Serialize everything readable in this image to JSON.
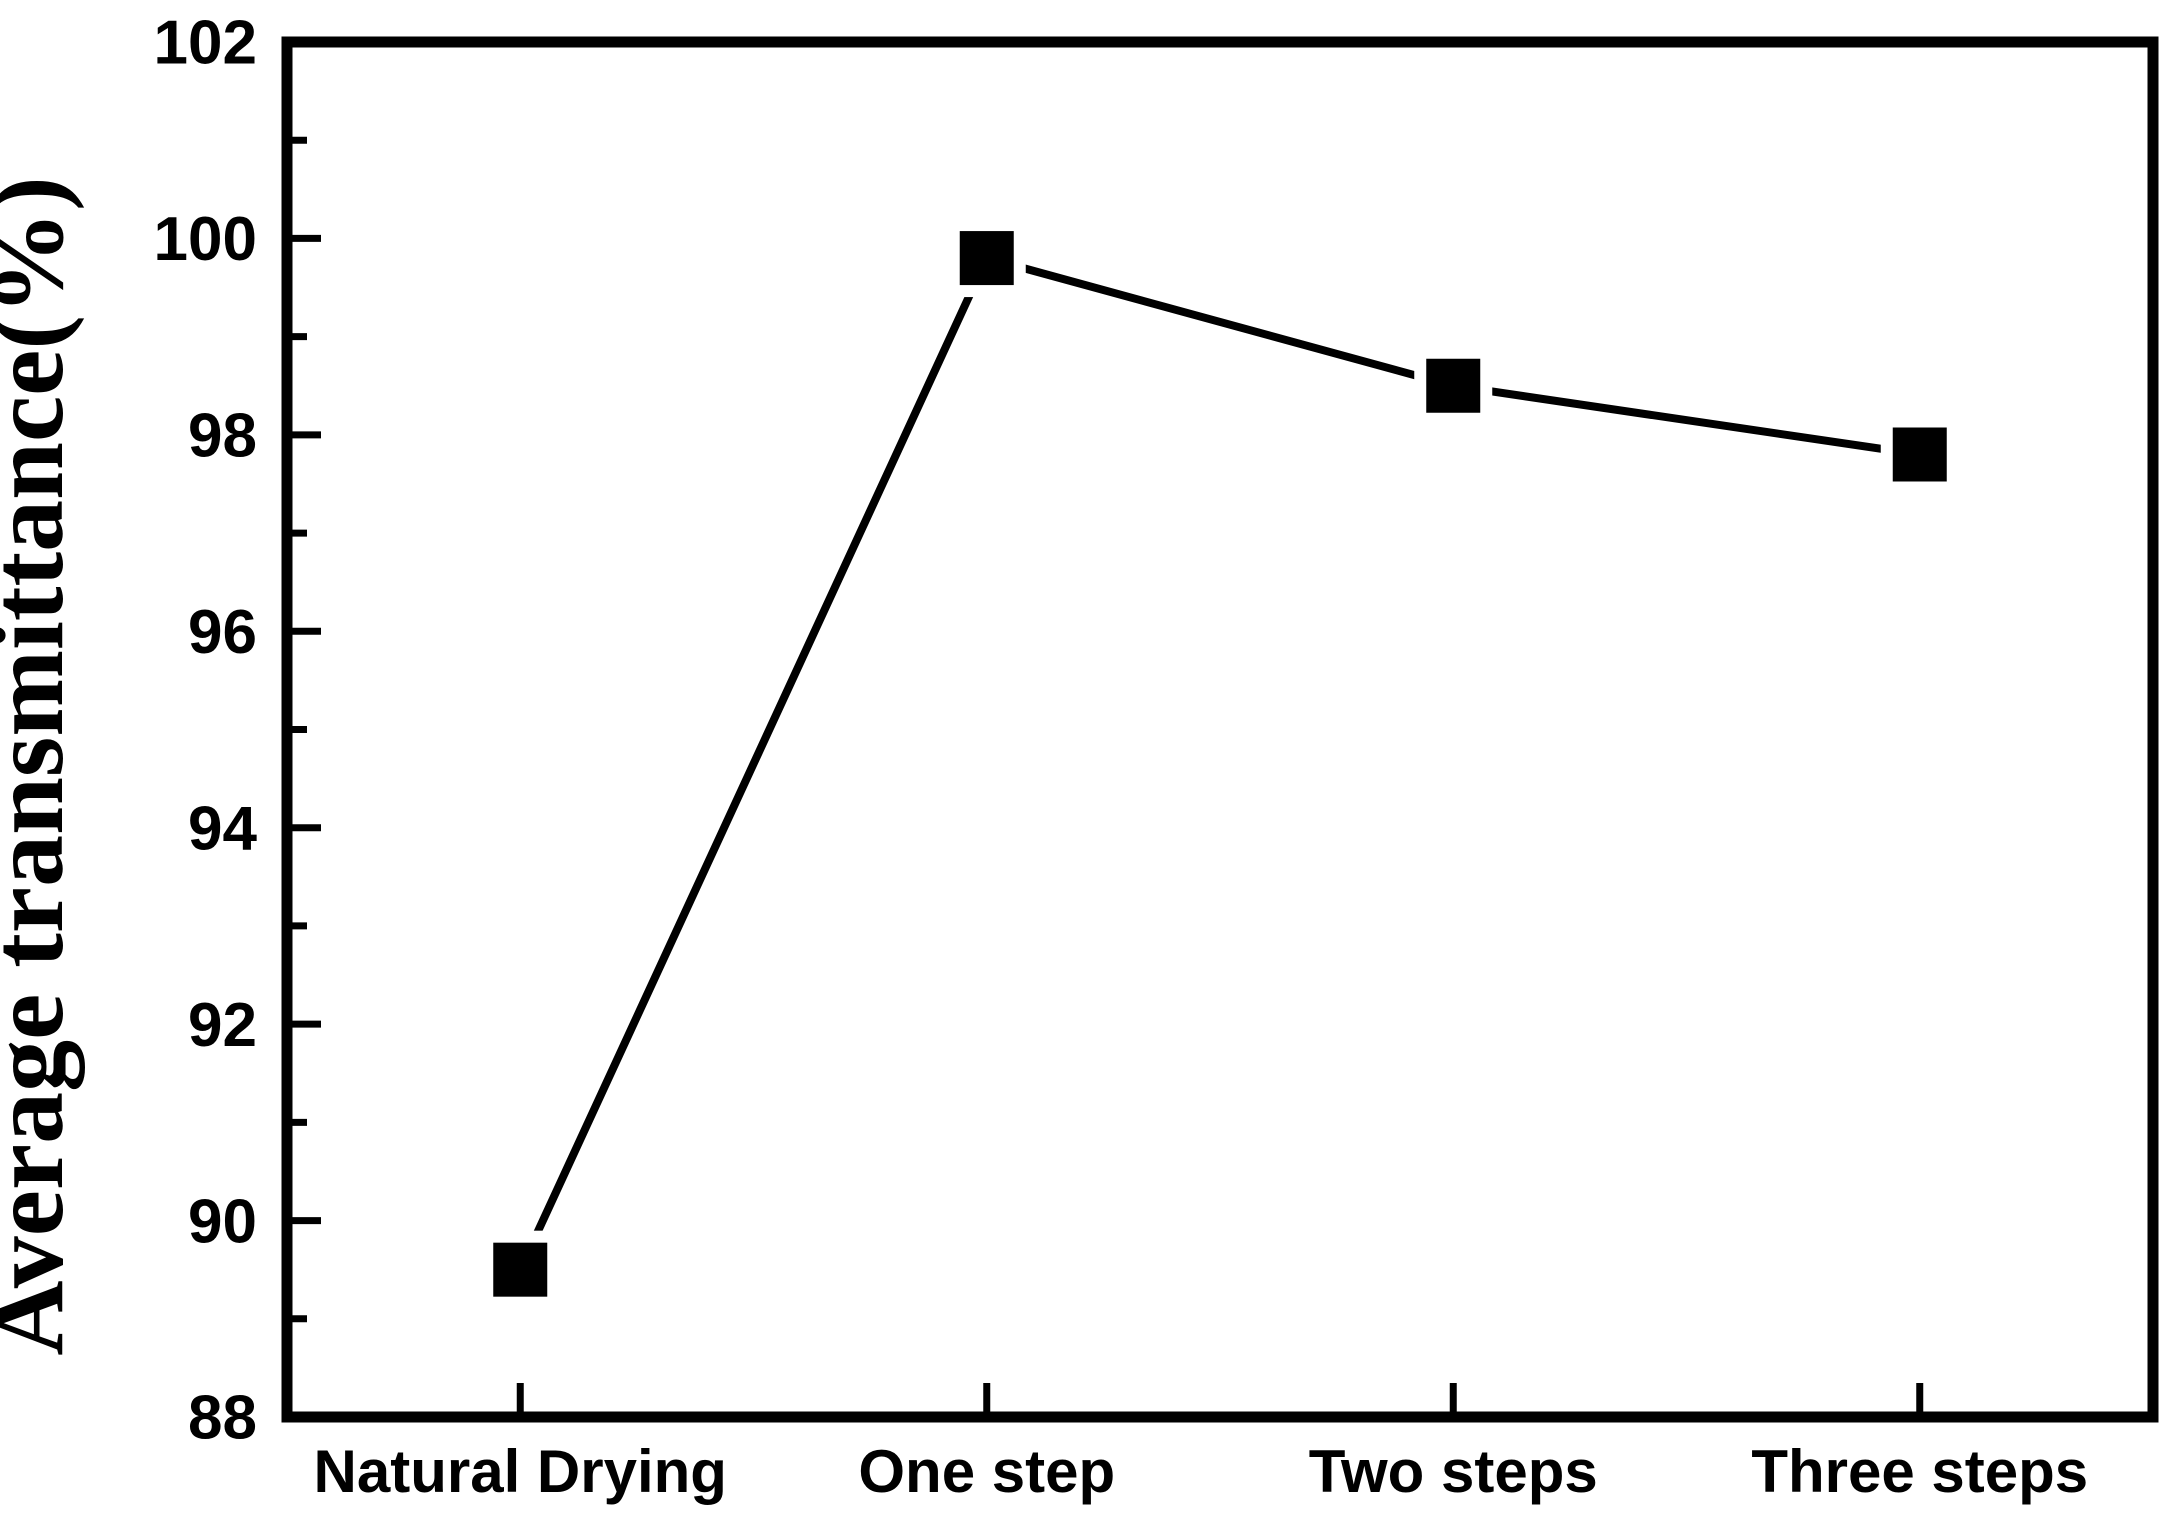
{
  "figure": {
    "background": "#ffffff",
    "ink": "#000000"
  },
  "chart_data": {
    "type": "line",
    "title": "",
    "categories": [
      "Natural Drying",
      "One step",
      "Two steps",
      "Three steps"
    ],
    "series": [
      {
        "name": "Average transmittance",
        "values": [
          89.5,
          99.8,
          98.5,
          97.8
        ],
        "color": "#000000",
        "marker": "filled-square"
      }
    ],
    "xlabel": "",
    "ylabel": "Average transmittance(%)",
    "ylim": [
      88,
      102
    ],
    "y_major_tick_step": 2,
    "y_minor_tick_step": 1,
    "y_tick_labels": [
      "88",
      "90",
      "92",
      "94",
      "96",
      "98",
      "100",
      "102"
    ],
    "grid": false,
    "legend_position": "none",
    "tick_direction": "in"
  }
}
